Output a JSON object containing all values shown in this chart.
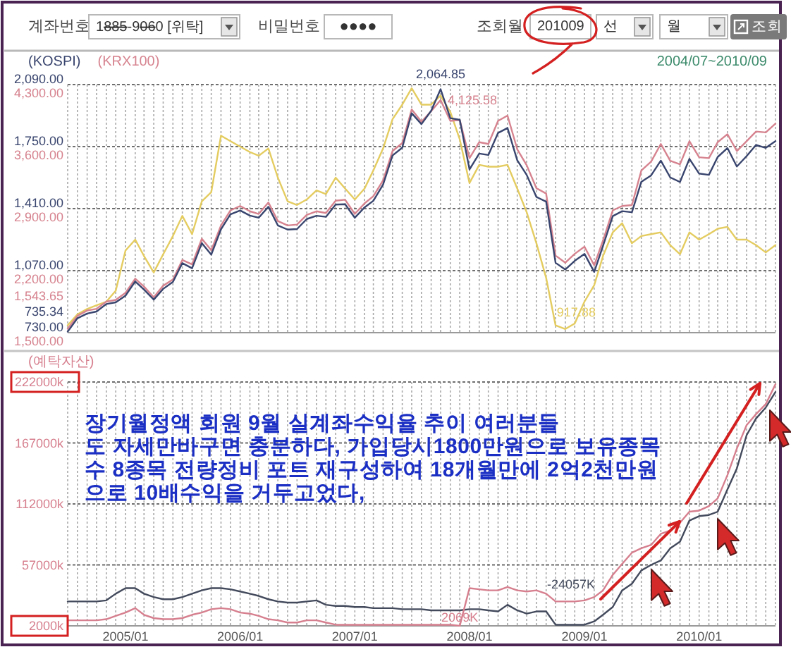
{
  "chart_data": [
    {
      "type": "other",
      "annotations": [
        "계좌번호",
        "1885-9060 [위탁]",
        "비밀번호",
        "●●●●",
        "조회월",
        "201009",
        "선",
        "월",
        "조회"
      ]
    },
    {
      "type": "line",
      "subtitle": "2004/07~2010/09",
      "tick_labels": "y",
      "grid": true,
      "legend": "top left",
      "x": [
        "2004-07",
        "2004-08",
        "2004-09",
        "2004-10",
        "2004-11",
        "2004-12",
        "2005-01",
        "2005-02",
        "2005-03",
        "2005-04",
        "2005-05",
        "2005-06",
        "2005-07",
        "2005-08",
        "2005-09",
        "2005-10",
        "2005-11",
        "2005-12",
        "2006-01",
        "2006-02",
        "2006-03",
        "2006-04",
        "2006-05",
        "2006-06",
        "2006-07",
        "2006-08",
        "2006-09",
        "2006-10",
        "2006-11",
        "2006-12",
        "2007-01",
        "2007-02",
        "2007-03",
        "2007-04",
        "2007-05",
        "2007-06",
        "2007-07",
        "2007-08",
        "2007-09",
        "2007-10",
        "2007-11",
        "2007-12",
        "2008-01",
        "2008-02",
        "2008-03",
        "2008-04",
        "2008-05",
        "2008-06",
        "2008-07",
        "2008-08",
        "2008-09",
        "2008-10",
        "2008-11",
        "2008-12",
        "2009-01",
        "2009-02",
        "2009-03",
        "2009-04",
        "2009-05",
        "2009-06",
        "2009-07",
        "2009-08",
        "2009-09",
        "2009-10",
        "2009-11",
        "2009-12",
        "2010-01",
        "2010-02",
        "2010-03",
        "2010-04",
        "2010-05",
        "2010-06",
        "2010-07",
        "2010-08",
        "2010-09"
      ],
      "xlim": [
        "2004-07",
        "2010-09"
      ],
      "xticks": [
        {
          "value": "2004-07",
          "label": null
        },
        {
          "value": "2004-08",
          "label": null
        },
        {
          "value": "2004-09",
          "label": null
        },
        {
          "value": "2004-10",
          "label": null
        },
        {
          "value": "2004-11",
          "label": null
        },
        {
          "value": "2004-12",
          "label": null
        },
        {
          "value": "2005-01",
          "label": null
        },
        {
          "value": "2005-02",
          "label": null
        },
        {
          "value": "2005-03",
          "label": null
        },
        {
          "value": "2005-04",
          "label": null
        },
        {
          "value": "2005-05",
          "label": null
        },
        {
          "value": "2005-06",
          "label": null
        },
        {
          "value": "2005-07",
          "label": null
        },
        {
          "value": "2005-08",
          "label": null
        },
        {
          "value": "2005-09",
          "label": null
        },
        {
          "value": "2005-10",
          "label": null
        },
        {
          "value": "2005-11",
          "label": null
        },
        {
          "value": "2005-12",
          "label": null
        },
        {
          "value": "2006-01",
          "label": null
        },
        {
          "value": "2006-02",
          "label": null
        },
        {
          "value": "2006-03",
          "label": null
        },
        {
          "value": "2006-04",
          "label": null
        },
        {
          "value": "2006-05",
          "label": null
        },
        {
          "value": "2006-06",
          "label": null
        },
        {
          "value": "2006-07",
          "label": null
        },
        {
          "value": "2006-08",
          "label": null
        },
        {
          "value": "2006-09",
          "label": null
        },
        {
          "value": "2006-10",
          "label": null
        },
        {
          "value": "2006-11",
          "label": null
        },
        {
          "value": "2006-12",
          "label": null
        },
        {
          "value": "2007-01",
          "label": null
        },
        {
          "value": "2007-02",
          "label": null
        },
        {
          "value": "2007-03",
          "label": null
        },
        {
          "value": "2007-04",
          "label": null
        },
        {
          "value": "2007-05",
          "label": null
        },
        {
          "value": "2007-06",
          "label": null
        },
        {
          "value": "2007-07",
          "label": null
        },
        {
          "value": "2007-08",
          "label": null
        },
        {
          "value": "2007-09",
          "label": null
        },
        {
          "value": "2007-10",
          "label": null
        },
        {
          "value": "2007-11",
          "label": null
        },
        {
          "value": "2007-12",
          "label": null
        },
        {
          "value": "2008-01",
          "label": null
        },
        {
          "value": "2008-02",
          "label": null
        },
        {
          "value": "2008-03",
          "label": null
        },
        {
          "value": "2008-04",
          "label": null
        },
        {
          "value": "2008-05",
          "label": null
        },
        {
          "value": "2008-06",
          "label": null
        },
        {
          "value": "2008-07",
          "label": null
        },
        {
          "value": "2008-08",
          "label": null
        },
        {
          "value": "2008-09",
          "label": null
        },
        {
          "value": "2008-10",
          "label": null
        },
        {
          "value": "2008-11",
          "label": null
        },
        {
          "value": "2008-12",
          "label": null
        },
        {
          "value": "2009-01",
          "label": null
        },
        {
          "value": "2009-02",
          "label": null
        },
        {
          "value": "2009-03",
          "label": null
        },
        {
          "value": "2009-04",
          "label": null
        },
        {
          "value": "2009-05",
          "label": null
        },
        {
          "value": "2009-06",
          "label": null
        },
        {
          "value": "2009-07",
          "label": null
        },
        {
          "value": "2009-08",
          "label": null
        },
        {
          "value": "2009-09",
          "label": null
        },
        {
          "value": "2009-10",
          "label": null
        },
        {
          "value": "2009-11",
          "label": null
        },
        {
          "value": "2009-12",
          "label": null
        },
        {
          "value": "2010-01",
          "label": null
        },
        {
          "value": "2010-02",
          "label": null
        },
        {
          "value": "2010-03",
          "label": null
        },
        {
          "value": "2010-04",
          "label": null
        },
        {
          "value": "2010-05",
          "label": null
        },
        {
          "value": "2010-06",
          "label": null
        },
        {
          "value": "2010-07",
          "label": null
        },
        {
          "value": "2010-08",
          "label": null
        },
        {
          "value": "2010-09",
          "label": null
        }
      ],
      "ylim": [
        730,
        2090
      ],
      "yticks": [
        {
          "value": 730,
          "label": "730.00"
        },
        {
          "value": 1070,
          "label": "1,070.00"
        },
        {
          "value": 1410,
          "label": "1,410.00"
        },
        {
          "value": 1750,
          "label": "1,750.00"
        },
        {
          "value": 2090,
          "label": "2,090.00"
        }
      ],
      "y2lim": [
        1500,
        4300
      ],
      "y2ticks": [
        {
          "value": 1500,
          "label": "1,500.00"
        },
        {
          "value": 2200,
          "label": "2,200.00"
        },
        {
          "value": 2900,
          "label": "2,900.00"
        },
        {
          "value": 3600,
          "label": "3,600.00"
        },
        {
          "value": 4300,
          "label": "4,300.00"
        }
      ],
      "annotations": [
        {
          "text": "917.88",
          "x": "2008-11",
          "y": 750
        }
      ],
      "series": [
        {
          "color": "#e4cc60",
          "values": [
            770,
            830,
            860,
            880,
            900,
            960,
            1180,
            1240,
            1150,
            1060,
            1160,
            1260,
            1370,
            1270,
            1450,
            1500,
            1810,
            1780,
            1750,
            1720,
            1700,
            1740,
            1580,
            1450,
            1430,
            1460,
            1510,
            1490,
            1580,
            1520,
            1460,
            1520,
            1620,
            1740,
            1900,
            1980,
            2070,
            1980,
            1980,
            2030,
            1940,
            1790,
            1550,
            1650,
            1640,
            1640,
            1650,
            1520,
            1390,
            1220,
            1030,
            770,
            750,
            780,
            900,
            990,
            1150,
            1280,
            1330,
            1220,
            1260,
            1270,
            1280,
            1210,
            1160,
            1280,
            1240,
            1270,
            1300,
            1310,
            1240,
            1240,
            1210,
            1170,
            1210
          ]
        },
        {
          "name": "(KRX100)",
          "color": "#d6838f",
          "axis": "y2",
          "values": [
            1543.65,
            1690,
            1750,
            1770,
            1850,
            1870,
            1950,
            2110,
            2020,
            1900,
            2030,
            2100,
            2320,
            2270,
            2560,
            2430,
            2710,
            2880,
            2930,
            2870,
            2840,
            2970,
            2760,
            2710,
            2720,
            2830,
            2870,
            2850,
            2990,
            3000,
            2840,
            2960,
            3040,
            3220,
            3550,
            3640,
            4020,
            3880,
            4000,
            4125.58,
            3890,
            3900,
            3470,
            3650,
            3630,
            3890,
            3950,
            3570,
            3390,
            3130,
            3070,
            2370,
            2290,
            2390,
            2470,
            2260,
            2540,
            2880,
            2930,
            2940,
            3330,
            3430,
            3630,
            3440,
            3400,
            3660,
            3480,
            3470,
            3650,
            3740,
            3550,
            3660,
            3770,
            3760,
            3860
          ],
          "value_labels": [
            "1,543.65",
            null,
            null,
            null,
            null,
            null,
            null,
            null,
            null,
            null,
            null,
            null,
            null,
            null,
            null,
            null,
            null,
            null,
            null,
            null,
            null,
            null,
            null,
            null,
            null,
            null,
            null,
            null,
            null,
            null,
            null,
            null,
            null,
            null,
            null,
            null,
            null,
            null,
            null,
            "4,125.58",
            null,
            null,
            null,
            null,
            null,
            null,
            null,
            null,
            null,
            null,
            null,
            null,
            null,
            null,
            null,
            null,
            null,
            null,
            null,
            null,
            null,
            null,
            null,
            null,
            null,
            null,
            null,
            null,
            null,
            null,
            null,
            null,
            null,
            null,
            null
          ]
        },
        {
          "name": "(KOSPI)",
          "color": "#39456e",
          "values": [
            735.34,
            809,
            835,
            846,
            887,
            896,
            933,
            1011,
            966,
            911,
            970,
            1008,
            1111,
            1083,
            1221,
            1158,
            1297,
            1379,
            1400,
            1372,
            1360,
            1420,
            1318,
            1295,
            1298,
            1353,
            1371,
            1365,
            1432,
            1434,
            1360,
            1417,
            1453,
            1542,
            1701,
            1744,
            1933,
            1873,
            1946,
            2064.85,
            1906,
            1897,
            1625,
            1712,
            1704,
            1825,
            1852,
            1675,
            1595,
            1474,
            1448,
            1113,
            1076,
            1124,
            1162,
            1063,
            1206,
            1369,
            1396,
            1390,
            1557,
            1592,
            1673,
            1581,
            1556,
            1683,
            1602,
            1595,
            1693,
            1742,
            1641,
            1698,
            1759,
            1743,
            1780
          ],
          "value_labels": [
            "735.34",
            null,
            null,
            null,
            null,
            null,
            null,
            null,
            null,
            null,
            null,
            null,
            null,
            null,
            null,
            null,
            null,
            null,
            null,
            null,
            null,
            null,
            null,
            null,
            null,
            null,
            null,
            null,
            null,
            null,
            null,
            null,
            null,
            null,
            null,
            null,
            null,
            null,
            null,
            "2,064.85",
            null,
            null,
            null,
            null,
            null,
            null,
            null,
            null,
            null,
            null,
            null,
            null,
            null,
            null,
            null,
            null,
            null,
            null,
            null,
            null,
            null,
            null,
            null,
            null,
            null,
            null,
            null,
            null,
            null,
            null,
            null,
            null,
            null,
            null,
            null
          ]
        }
      ]
    },
    {
      "type": "line",
      "ylabel": "(예탁자산)",
      "grid": true,
      "x": [
        "2004-07",
        "2004-08",
        "2004-09",
        "2004-10",
        "2004-11",
        "2004-12",
        "2005-01",
        "2005-02",
        "2005-03",
        "2005-04",
        "2005-05",
        "2005-06",
        "2005-07",
        "2005-08",
        "2005-09",
        "2005-10",
        "2005-11",
        "2005-12",
        "2006-01",
        "2006-02",
        "2006-03",
        "2006-04",
        "2006-05",
        "2006-06",
        "2006-07",
        "2006-08",
        "2006-09",
        "2006-10",
        "2006-11",
        "2006-12",
        "2007-01",
        "2007-02",
        "2007-03",
        "2007-04",
        "2007-05",
        "2007-06",
        "2007-07",
        "2007-08",
        "2007-09",
        "2007-10",
        "2007-11",
        "2007-12",
        "2008-01",
        "2008-02",
        "2008-03",
        "2008-04",
        "2008-05",
        "2008-06",
        "2008-07",
        "2008-08",
        "2008-09",
        "2008-10",
        "2008-11",
        "2008-12",
        "2009-01",
        "2009-02",
        "2009-03",
        "2009-04",
        "2009-05",
        "2009-06",
        "2009-07",
        "2009-08",
        "2009-09",
        "2009-10",
        "2009-11",
        "2009-12",
        "2010-01",
        "2010-02",
        "2010-03",
        "2010-04",
        "2010-05",
        "2010-06",
        "2010-07",
        "2010-08",
        "2010-09"
      ],
      "xlim": [
        "2004-07",
        "2010-09"
      ],
      "xticks": [
        {
          "value": "2004-07",
          "label": null
        },
        {
          "value": "2004-08",
          "label": null
        },
        {
          "value": "2004-09",
          "label": null
        },
        {
          "value": "2004-10",
          "label": null
        },
        {
          "value": "2004-11",
          "label": null
        },
        {
          "value": "2004-12",
          "label": null
        },
        {
          "value": "2005-01",
          "label": "2005/01"
        },
        {
          "value": "2005-02",
          "label": null
        },
        {
          "value": "2005-03",
          "label": null
        },
        {
          "value": "2005-04",
          "label": null
        },
        {
          "value": "2005-05",
          "label": null
        },
        {
          "value": "2005-06",
          "label": null
        },
        {
          "value": "2005-07",
          "label": null
        },
        {
          "value": "2005-08",
          "label": null
        },
        {
          "value": "2005-09",
          "label": null
        },
        {
          "value": "2005-10",
          "label": null
        },
        {
          "value": "2005-11",
          "label": null
        },
        {
          "value": "2005-12",
          "label": null
        },
        {
          "value": "2006-01",
          "label": "2006/01"
        },
        {
          "value": "2006-02",
          "label": null
        },
        {
          "value": "2006-03",
          "label": null
        },
        {
          "value": "2006-04",
          "label": null
        },
        {
          "value": "2006-05",
          "label": null
        },
        {
          "value": "2006-06",
          "label": null
        },
        {
          "value": "2006-07",
          "label": null
        },
        {
          "value": "2006-08",
          "label": null
        },
        {
          "value": "2006-09",
          "label": null
        },
        {
          "value": "2006-10",
          "label": null
        },
        {
          "value": "2006-11",
          "label": null
        },
        {
          "value": "2006-12",
          "label": null
        },
        {
          "value": "2007-01",
          "label": "2007/01"
        },
        {
          "value": "2007-02",
          "label": null
        },
        {
          "value": "2007-03",
          "label": null
        },
        {
          "value": "2007-04",
          "label": null
        },
        {
          "value": "2007-05",
          "label": null
        },
        {
          "value": "2007-06",
          "label": null
        },
        {
          "value": "2007-07",
          "label": null
        },
        {
          "value": "2007-08",
          "label": null
        },
        {
          "value": "2007-09",
          "label": null
        },
        {
          "value": "2007-10",
          "label": null
        },
        {
          "value": "2007-11",
          "label": null
        },
        {
          "value": "2007-12",
          "label": null
        },
        {
          "value": "2008-01",
          "label": "2008/01"
        },
        {
          "value": "2008-02",
          "label": null
        },
        {
          "value": "2008-03",
          "label": null
        },
        {
          "value": "2008-04",
          "label": null
        },
        {
          "value": "2008-05",
          "label": null
        },
        {
          "value": "2008-06",
          "label": null
        },
        {
          "value": "2008-07",
          "label": null
        },
        {
          "value": "2008-08",
          "label": null
        },
        {
          "value": "2008-09",
          "label": null
        },
        {
          "value": "2008-10",
          "label": null
        },
        {
          "value": "2008-11",
          "label": null
        },
        {
          "value": "2008-12",
          "label": null
        },
        {
          "value": "2009-01",
          "label": "2009/01"
        },
        {
          "value": "2009-02",
          "label": null
        },
        {
          "value": "2009-03",
          "label": null
        },
        {
          "value": "2009-04",
          "label": null
        },
        {
          "value": "2009-05",
          "label": null
        },
        {
          "value": "2009-06",
          "label": null
        },
        {
          "value": "2009-07",
          "label": null
        },
        {
          "value": "2009-08",
          "label": null
        },
        {
          "value": "2009-09",
          "label": null
        },
        {
          "value": "2009-10",
          "label": null
        },
        {
          "value": "2009-11",
          "label": null
        },
        {
          "value": "2009-12",
          "label": null
        },
        {
          "value": "2010-01",
          "label": "2010/01"
        },
        {
          "value": "2010-02",
          "label": null
        },
        {
          "value": "2010-03",
          "label": null
        },
        {
          "value": "2010-04",
          "label": null
        },
        {
          "value": "2010-05",
          "label": null
        },
        {
          "value": "2010-06",
          "label": null
        },
        {
          "value": "2010-07",
          "label": null
        },
        {
          "value": "2010-08",
          "label": null
        },
        {
          "value": "2010-09",
          "label": null
        }
      ],
      "ylim": [
        2000,
        222000
      ],
      "yticks": [
        {
          "value": 2000,
          "label": "2000k"
        },
        {
          "value": 57000,
          "label": "57000k"
        },
        {
          "value": 112000,
          "label": "112000k"
        },
        {
          "value": 167000,
          "label": "167000k"
        },
        {
          "value": 222000,
          "label": "222000k"
        }
      ],
      "annotations": [
        "장기월정액 회원 9월 실계좌수익율 추이 여러분들\n도 자세만바구면 충분하다, 가입당시1800만원으로 보유종목\n수 8종목 전량정비 포트 재구성하여 18개월만에 2억2천만원\n으로 10배수익을 거두고었다,",
        {
          "text": "-24057K",
          "x": "2008-10",
          "y": 24057
        }
      ],
      "series": [
        {
          "color": "#434a5c",
          "values": [
            24000,
            24000,
            24000,
            24000,
            25000,
            31000,
            36000,
            36000,
            31000,
            28000,
            26000,
            26000,
            28000,
            31000,
            34000,
            36000,
            36000,
            35000,
            33000,
            31000,
            29000,
            26000,
            24000,
            23000,
            23000,
            24000,
            25000,
            21000,
            20000,
            20000,
            19000,
            19000,
            18000,
            18000,
            18000,
            17000,
            17000,
            17000,
            16000,
            16000,
            16000,
            16000,
            17000,
            17000,
            16000,
            15000,
            21000,
            16000,
            13000,
            15000,
            15000,
            3000,
            3000,
            3000,
            3000,
            6000,
            12000,
            19000,
            34000,
            40000,
            52000,
            57000,
            61000,
            72000,
            78000,
            97000,
            101000,
            102000,
            105000,
            125000,
            144000,
            174000,
            189000,
            199000,
            213000
          ]
        },
        {
          "color": "#d67f8e",
          "values": [
            7000,
            7000,
            7000,
            7000,
            8000,
            11000,
            14000,
            18000,
            12000,
            9000,
            8000,
            8000,
            9000,
            12000,
            14000,
            17000,
            18000,
            17000,
            14000,
            13000,
            11000,
            8000,
            7000,
            5000,
            5000,
            7000,
            7000,
            5000,
            3000,
            3000,
            3000,
            3000,
            3000,
            3000,
            3000,
            3000,
            3000,
            3000,
            3000,
            3000,
            3000,
            2069,
            36000,
            35000,
            34000,
            34000,
            37000,
            34000,
            33000,
            34000,
            31000,
            24000,
            24000,
            24000,
            25000,
            28000,
            34000,
            48000,
            58000,
            68000,
            72000,
            75000,
            85000,
            88000,
            95000,
            105000,
            106000,
            110000,
            117000,
            138000,
            162000,
            183000,
            193000,
            202000,
            220000
          ],
          "value_labels": [
            null,
            null,
            null,
            null,
            null,
            null,
            null,
            null,
            null,
            null,
            null,
            null,
            null,
            null,
            null,
            null,
            null,
            null,
            null,
            null,
            null,
            null,
            null,
            null,
            null,
            null,
            null,
            null,
            null,
            null,
            null,
            null,
            null,
            null,
            null,
            null,
            null,
            null,
            null,
            null,
            null,
            "2069K",
            null,
            null,
            null,
            null,
            null,
            null,
            null,
            null,
            null,
            null,
            null,
            null,
            null,
            null,
            null,
            null,
            null,
            null,
            null,
            null,
            null,
            null,
            null,
            null,
            null,
            null,
            null,
            null,
            null,
            null,
            null,
            null,
            null
          ]
        }
      ]
    }
  ]
}
